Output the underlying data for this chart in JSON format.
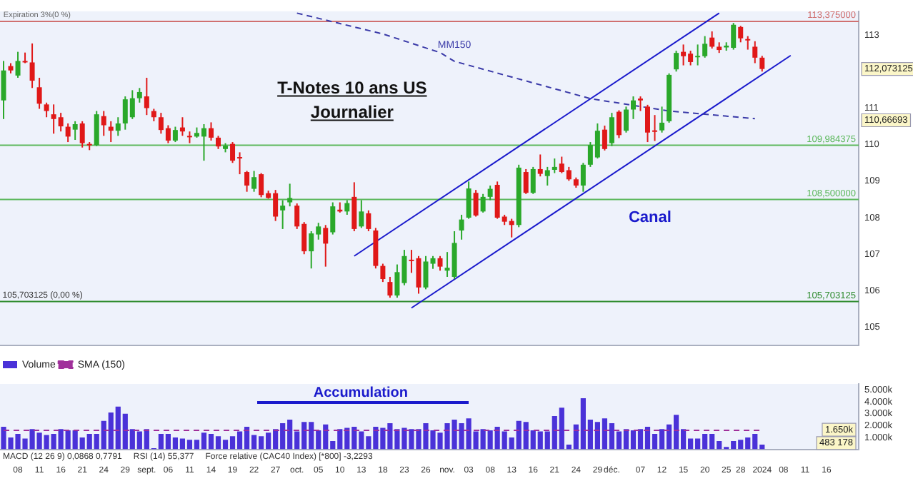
{
  "chart_data": [
    {
      "type": "candlestick",
      "title": "T-Notes 10 ans US",
      "subtitle": "Journalier",
      "categories": [
        null,
        null,
        null,
        null,
        null,
        null,
        null,
        null,
        null,
        null,
        null,
        null,
        null,
        null,
        null,
        null,
        null,
        null,
        null,
        null,
        null,
        null,
        null,
        null,
        null,
        null,
        null,
        null,
        null,
        null,
        null,
        null,
        null,
        null,
        null,
        null,
        null,
        null,
        null,
        null,
        null,
        null,
        null,
        null,
        null,
        null,
        null,
        null,
        null,
        null,
        null,
        null,
        null,
        null,
        null,
        null,
        null,
        null,
        null,
        null,
        null,
        null,
        null,
        null,
        null,
        null,
        null,
        null,
        null,
        null,
        null,
        null,
        null,
        null,
        null,
        null,
        null,
        null,
        null,
        null,
        null,
        null,
        null,
        null,
        null,
        null,
        null,
        null,
        null,
        null,
        null,
        null,
        null,
        null,
        null,
        null,
        null,
        null,
        null,
        null,
        null,
        null,
        null,
        null,
        null,
        null,
        null,
        null,
        null,
        null,
        null,
        null,
        null,
        null,
        null,
        null,
        null,
        null,
        null,
        null
      ],
      "ohlc": [
        [
          111.21,
          112.29,
          110.7,
          112.03
        ],
        [
          112.15,
          112.23,
          111.95,
          112.03
        ],
        [
          111.89,
          112.54,
          111.83,
          112.29
        ],
        [
          112.29,
          112.52,
          112.23,
          112.25
        ],
        [
          112.25,
          112.77,
          111.55,
          111.75
        ],
        [
          111.57,
          111.83,
          110.98,
          111.12
        ],
        [
          111.1,
          111.15,
          110.75,
          110.92
        ],
        [
          110.83,
          111.1,
          110.3,
          110.7
        ],
        [
          110.75,
          110.87,
          110.36,
          110.5
        ],
        [
          110.49,
          110.58,
          110.07,
          110.22
        ],
        [
          110.41,
          110.64,
          110.13,
          110.56
        ],
        [
          110.58,
          110.64,
          109.92,
          110.04
        ],
        [
          110.02,
          110.07,
          109.85,
          109.98
        ],
        [
          109.99,
          110.92,
          109.96,
          110.83
        ],
        [
          110.78,
          110.92,
          110.24,
          110.53
        ],
        [
          110.49,
          110.64,
          110.07,
          110.38
        ],
        [
          110.38,
          110.75,
          110.24,
          110.58
        ],
        [
          110.58,
          111.32,
          110.41,
          111.24
        ],
        [
          110.75,
          111.49,
          110.7,
          111.27
        ],
        [
          111.27,
          111.55,
          111.15,
          111.44
        ],
        [
          111.32,
          111.83,
          110.81,
          111.0
        ],
        [
          110.92,
          110.98,
          110.64,
          110.75
        ],
        [
          110.75,
          110.87,
          110.3,
          110.4
        ],
        [
          110.45,
          110.53,
          110.04,
          110.11
        ],
        [
          110.11,
          110.49,
          110.07,
          110.4
        ],
        [
          110.47,
          110.75,
          110.24,
          110.36
        ],
        [
          110.24,
          110.36,
          110.04,
          110.22
        ],
        [
          110.22,
          110.47,
          110.19,
          110.32
        ],
        [
          110.22,
          110.56,
          109.56,
          110.45
        ],
        [
          110.45,
          110.61,
          110.11,
          110.19
        ],
        [
          110.19,
          110.24,
          109.88,
          109.95
        ],
        [
          109.88,
          110.04,
          109.79,
          109.97
        ],
        [
          110.02,
          110.07,
          109.5,
          109.56
        ],
        [
          109.66,
          109.79,
          109.19,
          109.64
        ],
        [
          109.25,
          109.28,
          108.71,
          108.88
        ],
        [
          108.79,
          109.28,
          108.71,
          109.11
        ],
        [
          109.19,
          109.22,
          108.56,
          108.62
        ],
        [
          108.67,
          108.74,
          108.52,
          108.54
        ],
        [
          108.67,
          108.76,
          107.91,
          108.03
        ],
        [
          108.2,
          108.48,
          107.69,
          108.33
        ],
        [
          108.42,
          108.93,
          108.31,
          108.54
        ],
        [
          108.33,
          108.39,
          107.69,
          107.76
        ],
        [
          107.83,
          107.88,
          107.0,
          107.08
        ],
        [
          107.08,
          107.63,
          106.61,
          107.57
        ],
        [
          107.54,
          107.86,
          107.4,
          107.76
        ],
        [
          107.72,
          107.8,
          106.66,
          107.29
        ],
        [
          107.6,
          108.42,
          107.54,
          108.31
        ],
        [
          108.22,
          108.42,
          108.14,
          108.17
        ],
        [
          108.17,
          108.48,
          108.08,
          108.4
        ],
        [
          108.57,
          108.97,
          107.63,
          107.69
        ],
        [
          107.76,
          108.48,
          107.72,
          108.17
        ],
        [
          108.12,
          108.2,
          107.63,
          107.69
        ],
        [
          107.65,
          107.72,
          106.61,
          106.68
        ],
        [
          106.68,
          106.74,
          106.24,
          106.32
        ],
        [
          106.24,
          106.38,
          105.81,
          105.87
        ],
        [
          105.87,
          106.72,
          105.81,
          106.51
        ],
        [
          106.21,
          107.12,
          106.15,
          106.95
        ],
        [
          106.85,
          107.12,
          106.49,
          106.83
        ],
        [
          106.89,
          106.95,
          105.92,
          106.09
        ],
        [
          106.09,
          106.95,
          106.04,
          106.8
        ],
        [
          106.74,
          106.95,
          106.6,
          106.89
        ],
        [
          106.89,
          106.95,
          106.55,
          106.66
        ],
        [
          106.55,
          107.06,
          106.38,
          106.63
        ],
        [
          106.38,
          107.63,
          106.32,
          107.31
        ],
        [
          107.65,
          108.08,
          107.4,
          107.95
        ],
        [
          108.0,
          108.99,
          107.97,
          108.8
        ],
        [
          108.68,
          108.76,
          108.03,
          108.06
        ],
        [
          108.17,
          108.65,
          108.14,
          108.57
        ],
        [
          108.57,
          108.88,
          108.48,
          108.79
        ],
        [
          108.9,
          108.99,
          107.97,
          108.0
        ],
        [
          108.03,
          108.08,
          107.8,
          107.89
        ],
        [
          107.91,
          107.97,
          107.46,
          107.8
        ],
        [
          107.8,
          109.45,
          107.74,
          109.37
        ],
        [
          109.25,
          109.33,
          108.65,
          108.68
        ],
        [
          108.68,
          109.39,
          108.65,
          109.33
        ],
        [
          109.33,
          109.73,
          109.13,
          109.2
        ],
        [
          109.14,
          109.39,
          108.88,
          109.3
        ],
        [
          109.31,
          109.62,
          109.22,
          109.39
        ],
        [
          109.48,
          109.67,
          109.22,
          109.25
        ],
        [
          109.3,
          109.39,
          109.01,
          109.05
        ],
        [
          109.05,
          109.1,
          108.82,
          108.88
        ],
        [
          108.88,
          109.5,
          108.71,
          109.45
        ],
        [
          109.45,
          110.07,
          109.39,
          109.99
        ],
        [
          109.65,
          110.58,
          109.62,
          110.38
        ],
        [
          110.41,
          110.52,
          109.84,
          109.88
        ],
        [
          110.04,
          110.87,
          109.96,
          110.75
        ],
        [
          110.9,
          110.94,
          110.18,
          110.26
        ],
        [
          110.38,
          111.04,
          110.33,
          110.96
        ],
        [
          110.96,
          111.32,
          110.7,
          111.21
        ],
        [
          111.26,
          111.32,
          110.92,
          111.21
        ],
        [
          111.04,
          111.09,
          110.07,
          110.33
        ],
        [
          110.39,
          110.81,
          110.1,
          110.35
        ],
        [
          110.39,
          111.04,
          110.33,
          110.6
        ],
        [
          110.64,
          111.95,
          110.6,
          111.91
        ],
        [
          112.06,
          112.57,
          112.0,
          112.51
        ],
        [
          112.54,
          112.74,
          112.17,
          112.42
        ],
        [
          112.49,
          112.57,
          112.17,
          112.26
        ],
        [
          112.4,
          112.74,
          112.17,
          112.43
        ],
        [
          112.42,
          112.97,
          112.38,
          112.76
        ],
        [
          112.93,
          113.1,
          112.63,
          112.68
        ],
        [
          112.68,
          112.8,
          112.51,
          112.59
        ],
        [
          112.66,
          112.8,
          112.57,
          112.71
        ],
        [
          112.65,
          113.33,
          112.6,
          113.28
        ],
        [
          113.22,
          113.25,
          112.8,
          112.91
        ],
        [
          112.89,
          112.97,
          112.6,
          112.88
        ],
        [
          112.68,
          112.83,
          112.23,
          112.38
        ],
        [
          112.38,
          112.43,
          112.0,
          112.07
        ],
        null,
        null,
        null,
        null,
        null,
        null,
        null,
        null,
        null,
        null,
        null,
        null,
        null
      ],
      "colors": [
        "#2aa82a",
        "#e01818",
        "#2aa82a",
        "#e01818",
        "#e01818",
        "#e01818",
        "#e01818",
        "#e01818",
        "#e01818",
        "#e01818",
        "#2aa82a",
        "#e01818",
        "#e01818",
        "#2aa82a",
        "#e01818",
        "#e01818",
        "#2aa82a",
        "#2aa82a",
        "#2aa82a",
        "#2aa82a",
        "#e01818",
        "#e01818",
        "#e01818",
        "#e01818",
        "#2aa82a",
        "#e01818",
        "#e01818",
        "#2aa82a",
        "#2aa82a",
        "#e01818",
        "#e01818",
        "#2aa82a",
        "#e01818",
        "#e01818",
        "#e01818",
        "#2aa82a",
        "#e01818",
        "#e01818",
        "#e01818",
        "#2aa82a",
        "#2aa82a",
        "#e01818",
        "#e01818",
        "#2aa82a",
        "#2aa82a",
        "#e01818",
        "#2aa82a",
        "#e01818",
        "#2aa82a",
        "#e01818",
        "#2aa82a",
        "#e01818",
        "#e01818",
        "#e01818",
        "#e01818",
        "#2aa82a",
        "#2aa82a",
        "#e01818",
        "#e01818",
        "#2aa82a",
        "#2aa82a",
        "#e01818",
        "#2aa82a",
        "#2aa82a",
        "#2aa82a",
        "#2aa82a",
        "#e01818",
        "#2aa82a",
        "#2aa82a",
        "#e01818",
        "#e01818",
        "#e01818",
        "#2aa82a",
        "#e01818",
        "#2aa82a",
        "#e01818",
        "#2aa82a",
        "#2aa82a",
        "#e01818",
        "#e01818",
        "#e01818",
        "#2aa82a",
        "#2aa82a",
        "#2aa82a",
        "#e01818",
        "#2aa82a",
        "#e01818",
        "#2aa82a",
        "#2aa82a",
        "#e01818",
        "#e01818",
        "#e01818",
        "#2aa82a",
        "#2aa82a",
        "#2aa82a",
        "#e01818",
        "#e01818",
        "#2aa82a",
        "#2aa82a",
        "#e01818",
        "#e01818",
        "#2aa82a",
        "#2aa82a",
        "#e01818",
        "#e01818",
        "#e01818",
        "#e01818",
        null,
        null,
        null,
        null,
        null,
        null,
        null,
        null,
        null,
        null,
        null,
        null,
        null
      ],
      "series": [
        {
          "type": "line",
          "name": "MM150",
          "color": "#3a3aa8",
          "line_style": "dashed",
          "values": [
            null,
            null,
            null,
            null,
            null,
            null,
            null,
            null,
            null,
            null,
            null,
            null,
            null,
            null,
            null,
            null,
            null,
            null,
            null,
            null,
            null,
            null,
            null,
            null,
            null,
            null,
            null,
            null,
            null,
            null,
            null,
            null,
            null,
            null,
            null,
            null,
            null,
            null,
            null,
            null,
            null,
            113.6,
            null,
            null,
            null,
            null,
            null,
            null,
            null,
            null,
            null,
            null,
            null,
            113.03,
            null,
            null,
            null,
            null,
            null,
            null,
            null,
            112.52,
            null,
            112.28,
            null,
            null,
            null,
            null,
            null,
            null,
            null,
            null,
            null,
            null,
            null,
            null,
            null,
            null,
            null,
            null,
            null,
            null,
            111.26,
            null,
            null,
            null,
            null,
            null,
            null,
            null,
            null,
            null,
            null,
            110.92,
            null,
            null,
            null,
            null,
            null,
            null,
            null,
            null,
            null,
            null,
            null,
            110.71,
            null,
            null,
            null,
            null,
            null,
            null,
            null,
            null,
            null,
            null,
            null,
            null,
            null,
            null
          ]
        },
        {
          "type": "line",
          "color": "#1a1acc",
          "values": [
            null,
            null,
            null,
            null,
            null,
            null,
            null,
            null,
            null,
            null,
            null,
            null,
            null,
            null,
            null,
            null,
            null,
            null,
            null,
            null,
            null,
            null,
            null,
            null,
            null,
            null,
            null,
            null,
            null,
            null,
            null,
            null,
            null,
            null,
            null,
            null,
            null,
            null,
            null,
            null,
            null,
            null,
            null,
            null,
            null,
            null,
            null,
            null,
            null,
            106.95,
            null,
            null,
            null,
            null,
            null,
            null,
            null,
            null,
            null,
            null,
            null,
            null,
            null,
            null,
            null,
            null,
            null,
            null,
            null,
            null,
            null,
            null,
            null,
            null,
            null,
            null,
            null,
            null,
            null,
            null,
            null,
            null,
            null,
            null,
            null,
            null,
            null,
            null,
            null,
            null,
            null,
            null,
            null,
            null,
            null,
            null,
            null,
            null,
            null,
            null,
            113.6,
            null,
            null,
            null,
            null,
            null,
            null,
            null,
            null,
            null,
            null,
            null,
            null,
            null,
            null,
            null,
            null,
            null,
            null,
            null
          ]
        },
        {
          "type": "line",
          "color": "#1a1acc",
          "values": [
            null,
            null,
            null,
            null,
            null,
            null,
            null,
            null,
            null,
            null,
            null,
            null,
            null,
            null,
            null,
            null,
            null,
            null,
            null,
            null,
            null,
            null,
            null,
            null,
            null,
            null,
            null,
            null,
            null,
            null,
            null,
            null,
            null,
            null,
            null,
            null,
            null,
            null,
            null,
            null,
            null,
            null,
            null,
            null,
            null,
            null,
            null,
            null,
            null,
            null,
            null,
            null,
            null,
            null,
            null,
            null,
            null,
            105.53,
            null,
            null,
            null,
            null,
            null,
            null,
            null,
            null,
            null,
            null,
            null,
            null,
            null,
            null,
            null,
            null,
            null,
            null,
            null,
            null,
            null,
            null,
            null,
            null,
            null,
            null,
            null,
            null,
            null,
            null,
            null,
            null,
            null,
            null,
            null,
            null,
            null,
            null,
            null,
            null,
            null,
            null,
            null,
            null,
            null,
            null,
            null,
            null,
            null,
            null,
            null,
            null,
            112.44,
            null,
            null,
            null,
            null,
            null,
            null,
            null,
            null,
            null
          ]
        }
      ],
      "ylim": [
        104.5,
        113.65
      ],
      "yticks": [
        105,
        106,
        107,
        108,
        109,
        110,
        111,
        113
      ],
      "tick_labels": "y",
      "ref_lines": [
        {
          "axis": "y",
          "value": 113.375,
          "label": "113,375000",
          "color": "#d07070"
        },
        {
          "axis": "y",
          "value": 109.984375,
          "label": "109,984375",
          "color": "#5cb85c"
        },
        {
          "axis": "y",
          "value": 108.5,
          "label": "108,500000",
          "color": "#5cb85c"
        },
        {
          "axis": "y",
          "value": 105.703125,
          "label": "105,703125",
          "color": "#2e8b2e"
        }
      ],
      "annotations": [
        "Expiration 3%(0 %)",
        "Canal",
        "105,703125 (0,00 %)",
        "112,073125",
        "110,66693"
      ]
    },
    {
      "type": "bar",
      "categories": [
        null,
        null,
        "08",
        null,
        null,
        "11",
        null,
        null,
        "16",
        null,
        null,
        "21",
        null,
        null,
        "24",
        null,
        null,
        "29",
        null,
        null,
        "sept.",
        null,
        null,
        "06",
        null,
        null,
        "11",
        null,
        null,
        "14",
        null,
        null,
        "19",
        null,
        null,
        "22",
        null,
        null,
        "27",
        null,
        null,
        "oct.",
        null,
        null,
        "05",
        null,
        null,
        "10",
        null,
        null,
        "13",
        null,
        null,
        "18",
        null,
        null,
        "23",
        null,
        null,
        "26",
        null,
        null,
        "nov.",
        null,
        null,
        "03",
        null,
        null,
        "08",
        null,
        null,
        "13",
        null,
        null,
        "16",
        null,
        null,
        "21",
        null,
        null,
        "24",
        null,
        null,
        "29",
        null,
        "déc.",
        null,
        null,
        null,
        "07",
        null,
        null,
        "12",
        null,
        null,
        "15",
        null,
        null,
        "20",
        null,
        null,
        "25",
        null,
        "28",
        null,
        null,
        "2024",
        null,
        null,
        "08",
        null,
        null,
        "11",
        null,
        null,
        "16",
        null,
        null,
        null,
        null
      ],
      "series": [
        {
          "name": "Volume",
          "color": "#4a32d8",
          "values": [
            1900,
            1000,
            1300,
            900,
            1700,
            1400,
            1200,
            1300,
            1700,
            1600,
            1600,
            1000,
            1300,
            1300,
            2400,
            3100,
            3600,
            3000,
            1700,
            1500,
            1700,
            100,
            1300,
            1300,
            1000,
            900,
            800,
            800,
            1400,
            1300,
            1100,
            800,
            1100,
            1500,
            1900,
            1200,
            1100,
            1400,
            1700,
            2200,
            2500,
            1500,
            2300,
            2300,
            1600,
            2100,
            700,
            1700,
            1800,
            1900,
            1500,
            1100,
            1900,
            1800,
            2200,
            1700,
            1800,
            1700,
            1700,
            2200,
            1600,
            1400,
            2200,
            2500,
            2200,
            2600,
            1500,
            1700,
            1600,
            1900,
            1500,
            1000,
            2400,
            2300,
            1600,
            1500,
            1500,
            2800,
            3500,
            400,
            2100,
            4300,
            2500,
            2300,
            2600,
            2200,
            1500,
            1700,
            1600,
            1700,
            1900,
            1300,
            1700,
            2100,
            2900,
            1700,
            900,
            900,
            1300,
            1300,
            700,
            200,
            700,
            800,
            1000,
            1300,
            400,
            null,
            null,
            null,
            null,
            null,
            null,
            null,
            null,
            null,
            null,
            null,
            null,
            null
          ]
        },
        {
          "type": "line",
          "name": "SMA (150)",
          "color": "#a0309a",
          "line_style": "dashed",
          "values": [
            1600,
            null,
            null,
            null,
            null,
            null,
            null,
            null,
            null,
            null,
            null,
            null,
            null,
            null,
            null,
            null,
            null,
            null,
            null,
            null,
            null,
            null,
            null,
            null,
            null,
            null,
            null,
            null,
            null,
            null,
            null,
            null,
            null,
            null,
            null,
            null,
            null,
            null,
            null,
            null,
            null,
            null,
            null,
            null,
            null,
            null,
            null,
            null,
            null,
            null,
            null,
            null,
            null,
            null,
            null,
            null,
            null,
            null,
            null,
            null,
            null,
            null,
            null,
            null,
            null,
            null,
            null,
            null,
            null,
            null,
            null,
            null,
            null,
            null,
            null,
            null,
            null,
            null,
            null,
            null,
            null,
            null,
            null,
            null,
            null,
            null,
            null,
            null,
            null,
            null,
            null,
            null,
            null,
            null,
            null,
            null,
            null,
            null,
            null,
            null,
            null,
            null,
            null,
            null,
            null,
            null,
            1600,
            null,
            null,
            null,
            null,
            null,
            null,
            null,
            null,
            null,
            null,
            null,
            null,
            null
          ]
        }
      ],
      "ylim": [
        0,
        5500
      ],
      "yticks": [
        {
          "value": 1000,
          "label": "1.000k"
        },
        {
          "value": 2000,
          "label": "2.000k"
        },
        {
          "value": 3000,
          "label": "3.000k"
        },
        {
          "value": 4000,
          "label": "4.000k"
        },
        {
          "value": 5000,
          "label": "5.000k"
        }
      ],
      "legend": "top left",
      "annotations": [
        "Accumulation",
        "MACD (12 26 9) 0,0868 0,7791",
        "RSI (14) 55,377",
        "Force relative (CAC40 Index) [*800] -3,2293",
        "1.650k",
        "483 178"
      ]
    }
  ]
}
